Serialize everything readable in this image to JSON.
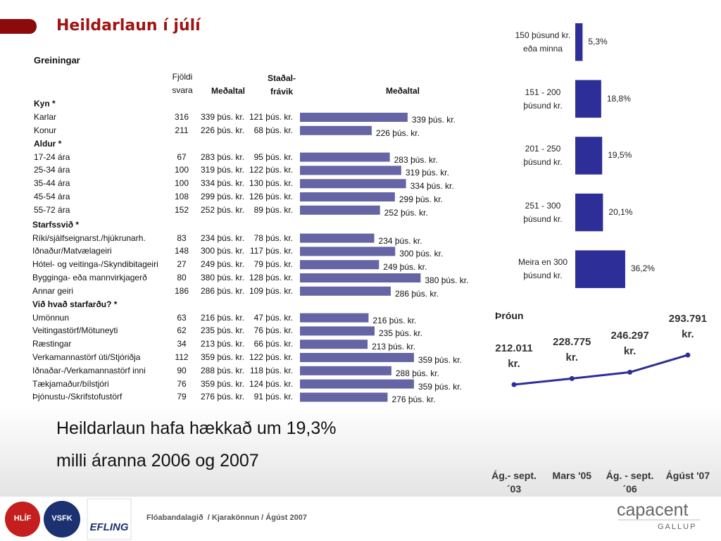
{
  "title": "Heildarlaun í júlí",
  "table": {
    "heading": "Greiningar",
    "columns": {
      "n": "Fjöldi svara",
      "mean": "Meðaltal",
      "sd": "Staðal- frávik",
      "bar": "Meðaltal"
    },
    "groups": [
      {
        "name": "Kyn *",
        "rows": [
          {
            "label": "Karlar",
            "n": 316,
            "mean": 339,
            "mean_label": "339 þús. kr.",
            "sd": "121 þús. kr."
          },
          {
            "label": "Konur",
            "n": 211,
            "mean": 226,
            "mean_label": "226 þús. kr.",
            "sd": "68 þús. kr."
          }
        ]
      },
      {
        "name": "Aldur *",
        "rows": [
          {
            "label": "17-24 ára",
            "n": 67,
            "mean": 283,
            "mean_label": "283 þús. kr.",
            "sd": "95 þús. kr."
          },
          {
            "label": "25-34 ára",
            "n": 100,
            "mean": 319,
            "mean_label": "319 þús. kr.",
            "sd": "122 þús. kr."
          },
          {
            "label": "35-44 ára",
            "n": 100,
            "mean": 334,
            "mean_label": "334 þús. kr.",
            "sd": "130 þús. kr."
          },
          {
            "label": "45-54 ára",
            "n": 108,
            "mean": 299,
            "mean_label": "299 þús. kr.",
            "sd": "126 þús. kr."
          },
          {
            "label": "55-72 ára",
            "n": 152,
            "mean": 252,
            "mean_label": "252 þús. kr.",
            "sd": "89 þús. kr."
          }
        ]
      },
      {
        "name": "Starfssvið *",
        "rows": [
          {
            "label": "Ríki/sjálfseignarst./hjúkrunarh.",
            "n": 83,
            "mean": 234,
            "mean_label": "234 þús. kr.",
            "sd": "78 þús. kr."
          },
          {
            "label": "Iðnaður/Matvælageiri",
            "n": 148,
            "mean": 300,
            "mean_label": "300 þús. kr.",
            "sd": "117 þús. kr."
          },
          {
            "label": "Hótel- og veitinga-/Skyndibitageiri",
            "n": 27,
            "mean": 249,
            "mean_label": "249 þús. kr.",
            "sd": "79 þús. kr."
          },
          {
            "label": "Bygginga- eða mannvirkjagerð",
            "n": 80,
            "mean": 380,
            "mean_label": "380 þús. kr.",
            "sd": "128 þús. kr."
          },
          {
            "label": "Annar geiri",
            "n": 186,
            "mean": 286,
            "mean_label": "286 þús. kr.",
            "sd": "109 þús. kr."
          }
        ]
      },
      {
        "name": "Við hvað starfarðu? *",
        "rows": [
          {
            "label": "Umönnun",
            "n": 63,
            "mean": 216,
            "mean_label": "216 þús. kr.",
            "sd": "47 þús. kr."
          },
          {
            "label": "Veitingastörf/Mötuneyti",
            "n": 62,
            "mean": 235,
            "mean_label": "235 þús. kr.",
            "sd": "76 þús. kr."
          },
          {
            "label": "Ræstingar",
            "n": 34,
            "mean": 213,
            "mean_label": "213 þús. kr.",
            "sd": "66 þús. kr."
          },
          {
            "label": "Verkamannastörf úti/Stjóriðja",
            "n": 112,
            "mean": 359,
            "mean_label": "359 þús. kr.",
            "sd": "122 þús. kr."
          },
          {
            "label": "Iðnaðar-/Verkamannastörf inni",
            "n": 90,
            "mean": 288,
            "mean_label": "288 þús. kr.",
            "sd": "118 þús. kr."
          },
          {
            "label": "Tækjamaður/bílstjóri",
            "n": 76,
            "mean": 359,
            "mean_label": "359 þús. kr.",
            "sd": "124 þús. kr."
          },
          {
            "label": "Þjónustu-/Skrifstofustörf",
            "n": 79,
            "mean": 276,
            "mean_label": "276 þús. kr.",
            "sd": "91 þús. kr."
          }
        ]
      }
    ]
  },
  "chart_data": [
    {
      "type": "bar",
      "orientation": "horizontal",
      "color": "#2e2e99",
      "categories": [
        "150 þúsund kr. eða minna",
        "151 - 200 þúsund kr.",
        "201 - 250 þúsund kr.",
        "251 - 300 þúsund kr.",
        "Meira en 300 þúsund kr."
      ],
      "values": [
        5.3,
        18.8,
        19.5,
        20.1,
        36.2
      ],
      "value_labels": [
        "5,3%",
        "18,8%",
        "19,5%",
        "20,1%",
        "36,2%"
      ]
    },
    {
      "type": "line",
      "title": "Þróun",
      "color": "#2e2e99",
      "categories": [
        "Ág.- sept. ´03",
        "Mars '05",
        "Ág. - sept. ´06",
        "Ágúst '07"
      ],
      "values": [
        212011,
        228775,
        246297,
        293791
      ],
      "value_labels": [
        "212.011 kr.",
        "228.775 kr.",
        "246.297 kr.",
        "293.791 kr."
      ]
    }
  ],
  "summary": [
    "Heildarlaun hafa hækkað um 19,3%",
    "milli áranna 2006 og 2007"
  ],
  "footer": "Flóabandalagið  / Kjarakönnun / Ágúst 2007",
  "brand": {
    "name": "capacent",
    "sub": "GALLUP"
  },
  "logos": [
    "HLÍF",
    "VSFK",
    "EFLING"
  ]
}
